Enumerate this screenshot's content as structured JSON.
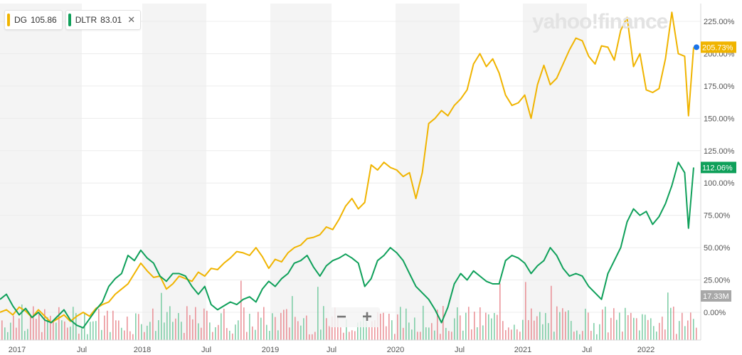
{
  "legend": [
    {
      "ticker": "DG",
      "value": "105.86",
      "color": "#f0b400"
    },
    {
      "ticker": "DLTR",
      "value": "83.01",
      "color": "#0fa05a"
    }
  ],
  "legend_close": "✕",
  "watermark": "yahoo!finance",
  "zoom": {
    "minus": "−",
    "plus": "+"
  },
  "chart_data": {
    "type": "line",
    "x_labels": [
      "2017",
      "Jul",
      "2018",
      "Jul",
      "2019",
      "Jul",
      "2020",
      "Jul",
      "2021",
      "Jul",
      "2022"
    ],
    "y_ticks": [
      "225.00%",
      "200.00%",
      "175.00%",
      "150.00%",
      "125.00%",
      "100.00%",
      "75.00%",
      "50.00%",
      "25.00%",
      "0.00%"
    ],
    "ylim": [
      -20,
      240
    ],
    "series": [
      {
        "name": "DG",
        "color": "#f0b400",
        "last_label": "205.73%",
        "points": [
          [
            2016.95,
            0
          ],
          [
            2017.0,
            2
          ],
          [
            2017.05,
            -2
          ],
          [
            2017.1,
            4
          ],
          [
            2017.15,
            1
          ],
          [
            2017.2,
            -4
          ],
          [
            2017.25,
            2
          ],
          [
            2017.3,
            -3
          ],
          [
            2017.35,
            -8
          ],
          [
            2017.4,
            -5
          ],
          [
            2017.45,
            -2
          ],
          [
            2017.5,
            -7
          ],
          [
            2017.55,
            -3
          ],
          [
            2017.6,
            0
          ],
          [
            2017.65,
            -3
          ],
          [
            2017.7,
            3
          ],
          [
            2017.75,
            6
          ],
          [
            2017.8,
            8
          ],
          [
            2017.85,
            14
          ],
          [
            2017.9,
            18
          ],
          [
            2017.95,
            22
          ],
          [
            2018.0,
            30
          ],
          [
            2018.05,
            38
          ],
          [
            2018.1,
            32
          ],
          [
            2018.15,
            27
          ],
          [
            2018.2,
            28
          ],
          [
            2018.25,
            18
          ],
          [
            2018.3,
            22
          ],
          [
            2018.35,
            28
          ],
          [
            2018.4,
            26
          ],
          [
            2018.45,
            24
          ],
          [
            2018.5,
            31
          ],
          [
            2018.55,
            28
          ],
          [
            2018.6,
            34
          ],
          [
            2018.65,
            33
          ],
          [
            2018.7,
            38
          ],
          [
            2018.75,
            42
          ],
          [
            2018.8,
            47
          ],
          [
            2018.85,
            46
          ],
          [
            2018.9,
            44
          ],
          [
            2018.95,
            50
          ],
          [
            2019.0,
            43
          ],
          [
            2019.05,
            34
          ],
          [
            2019.1,
            41
          ],
          [
            2019.15,
            39
          ],
          [
            2019.2,
            46
          ],
          [
            2019.25,
            50
          ],
          [
            2019.3,
            52
          ],
          [
            2019.35,
            57
          ],
          [
            2019.4,
            58
          ],
          [
            2019.45,
            60
          ],
          [
            2019.5,
            66
          ],
          [
            2019.55,
            64
          ],
          [
            2019.6,
            72
          ],
          [
            2019.65,
            82
          ],
          [
            2019.7,
            88
          ],
          [
            2019.75,
            80
          ],
          [
            2019.8,
            85
          ],
          [
            2019.85,
            114
          ],
          [
            2019.9,
            110
          ],
          [
            2019.95,
            116
          ],
          [
            2020.0,
            112
          ],
          [
            2020.05,
            110
          ],
          [
            2020.1,
            105
          ],
          [
            2020.15,
            108
          ],
          [
            2020.2,
            88
          ],
          [
            2020.25,
            108
          ],
          [
            2020.3,
            146
          ],
          [
            2020.35,
            150
          ],
          [
            2020.4,
            156
          ],
          [
            2020.45,
            152
          ],
          [
            2020.5,
            160
          ],
          [
            2020.55,
            165
          ],
          [
            2020.6,
            172
          ],
          [
            2020.65,
            192
          ],
          [
            2020.7,
            200
          ],
          [
            2020.75,
            190
          ],
          [
            2020.8,
            196
          ],
          [
            2020.85,
            185
          ],
          [
            2020.9,
            168
          ],
          [
            2020.95,
            160
          ],
          [
            2021.0,
            162
          ],
          [
            2021.05,
            168
          ],
          [
            2021.1,
            150
          ],
          [
            2021.15,
            176
          ],
          [
            2021.2,
            191
          ],
          [
            2021.25,
            176
          ],
          [
            2021.3,
            181
          ],
          [
            2021.35,
            192
          ],
          [
            2021.4,
            203
          ],
          [
            2021.45,
            212
          ],
          [
            2021.5,
            210
          ],
          [
            2021.55,
            198
          ],
          [
            2021.6,
            192
          ],
          [
            2021.65,
            206
          ],
          [
            2021.7,
            205
          ],
          [
            2021.75,
            195
          ],
          [
            2021.8,
            218
          ],
          [
            2021.85,
            228
          ],
          [
            2021.9,
            190
          ],
          [
            2021.95,
            200
          ],
          [
            2022.0,
            172
          ],
          [
            2022.05,
            170
          ],
          [
            2022.1,
            173
          ],
          [
            2022.15,
            196
          ],
          [
            2022.2,
            232
          ],
          [
            2022.25,
            200
          ],
          [
            2022.3,
            198
          ],
          [
            2022.33,
            152
          ],
          [
            2022.37,
            205
          ]
        ]
      },
      {
        "name": "DLTR",
        "color": "#0fa05a",
        "last_label": "112.06%",
        "points": [
          [
            2016.95,
            10
          ],
          [
            2017.0,
            14
          ],
          [
            2017.05,
            5
          ],
          [
            2017.1,
            -2
          ],
          [
            2017.15,
            3
          ],
          [
            2017.2,
            -4
          ],
          [
            2017.25,
            0
          ],
          [
            2017.3,
            -6
          ],
          [
            2017.35,
            -8
          ],
          [
            2017.4,
            -3
          ],
          [
            2017.45,
            2
          ],
          [
            2017.5,
            -6
          ],
          [
            2017.55,
            -10
          ],
          [
            2017.6,
            -12
          ],
          [
            2017.65,
            -5
          ],
          [
            2017.7,
            2
          ],
          [
            2017.75,
            8
          ],
          [
            2017.8,
            20
          ],
          [
            2017.85,
            26
          ],
          [
            2017.9,
            30
          ],
          [
            2017.95,
            44
          ],
          [
            2018.0,
            40
          ],
          [
            2018.05,
            48
          ],
          [
            2018.1,
            42
          ],
          [
            2018.15,
            38
          ],
          [
            2018.2,
            28
          ],
          [
            2018.25,
            24
          ],
          [
            2018.3,
            30
          ],
          [
            2018.35,
            30
          ],
          [
            2018.4,
            28
          ],
          [
            2018.45,
            20
          ],
          [
            2018.5,
            14
          ],
          [
            2018.55,
            20
          ],
          [
            2018.6,
            6
          ],
          [
            2018.65,
            2
          ],
          [
            2018.7,
            5
          ],
          [
            2018.75,
            8
          ],
          [
            2018.8,
            6
          ],
          [
            2018.85,
            10
          ],
          [
            2018.9,
            12
          ],
          [
            2018.95,
            8
          ],
          [
            2019.0,
            18
          ],
          [
            2019.05,
            24
          ],
          [
            2019.1,
            20
          ],
          [
            2019.15,
            26
          ],
          [
            2019.2,
            30
          ],
          [
            2019.25,
            38
          ],
          [
            2019.3,
            40
          ],
          [
            2019.35,
            44
          ],
          [
            2019.4,
            35
          ],
          [
            2019.45,
            28
          ],
          [
            2019.5,
            36
          ],
          [
            2019.55,
            40
          ],
          [
            2019.6,
            42
          ],
          [
            2019.65,
            45
          ],
          [
            2019.7,
            42
          ],
          [
            2019.75,
            38
          ],
          [
            2019.8,
            20
          ],
          [
            2019.85,
            26
          ],
          [
            2019.9,
            40
          ],
          [
            2019.95,
            44
          ],
          [
            2020.0,
            50
          ],
          [
            2020.05,
            46
          ],
          [
            2020.1,
            40
          ],
          [
            2020.15,
            30
          ],
          [
            2020.2,
            20
          ],
          [
            2020.25,
            15
          ],
          [
            2020.3,
            10
          ],
          [
            2020.35,
            2
          ],
          [
            2020.4,
            -8
          ],
          [
            2020.45,
            4
          ],
          [
            2020.5,
            22
          ],
          [
            2020.55,
            30
          ],
          [
            2020.6,
            25
          ],
          [
            2020.65,
            32
          ],
          [
            2020.7,
            28
          ],
          [
            2020.75,
            24
          ],
          [
            2020.8,
            22
          ],
          [
            2020.85,
            22
          ],
          [
            2020.9,
            40
          ],
          [
            2020.95,
            44
          ],
          [
            2021.0,
            42
          ],
          [
            2021.05,
            38
          ],
          [
            2021.1,
            30
          ],
          [
            2021.15,
            36
          ],
          [
            2021.2,
            40
          ],
          [
            2021.25,
            50
          ],
          [
            2021.3,
            44
          ],
          [
            2021.35,
            34
          ],
          [
            2021.4,
            28
          ],
          [
            2021.45,
            30
          ],
          [
            2021.5,
            28
          ],
          [
            2021.55,
            20
          ],
          [
            2021.6,
            15
          ],
          [
            2021.65,
            10
          ],
          [
            2021.7,
            30
          ],
          [
            2021.75,
            40
          ],
          [
            2021.8,
            50
          ],
          [
            2021.85,
            70
          ],
          [
            2021.9,
            80
          ],
          [
            2021.95,
            75
          ],
          [
            2022.0,
            78
          ],
          [
            2022.05,
            68
          ],
          [
            2022.1,
            74
          ],
          [
            2022.15,
            84
          ],
          [
            2022.2,
            98
          ],
          [
            2022.25,
            116
          ],
          [
            2022.3,
            108
          ],
          [
            2022.33,
            65
          ],
          [
            2022.37,
            112
          ]
        ]
      }
    ],
    "volume_label": "17.33M"
  }
}
